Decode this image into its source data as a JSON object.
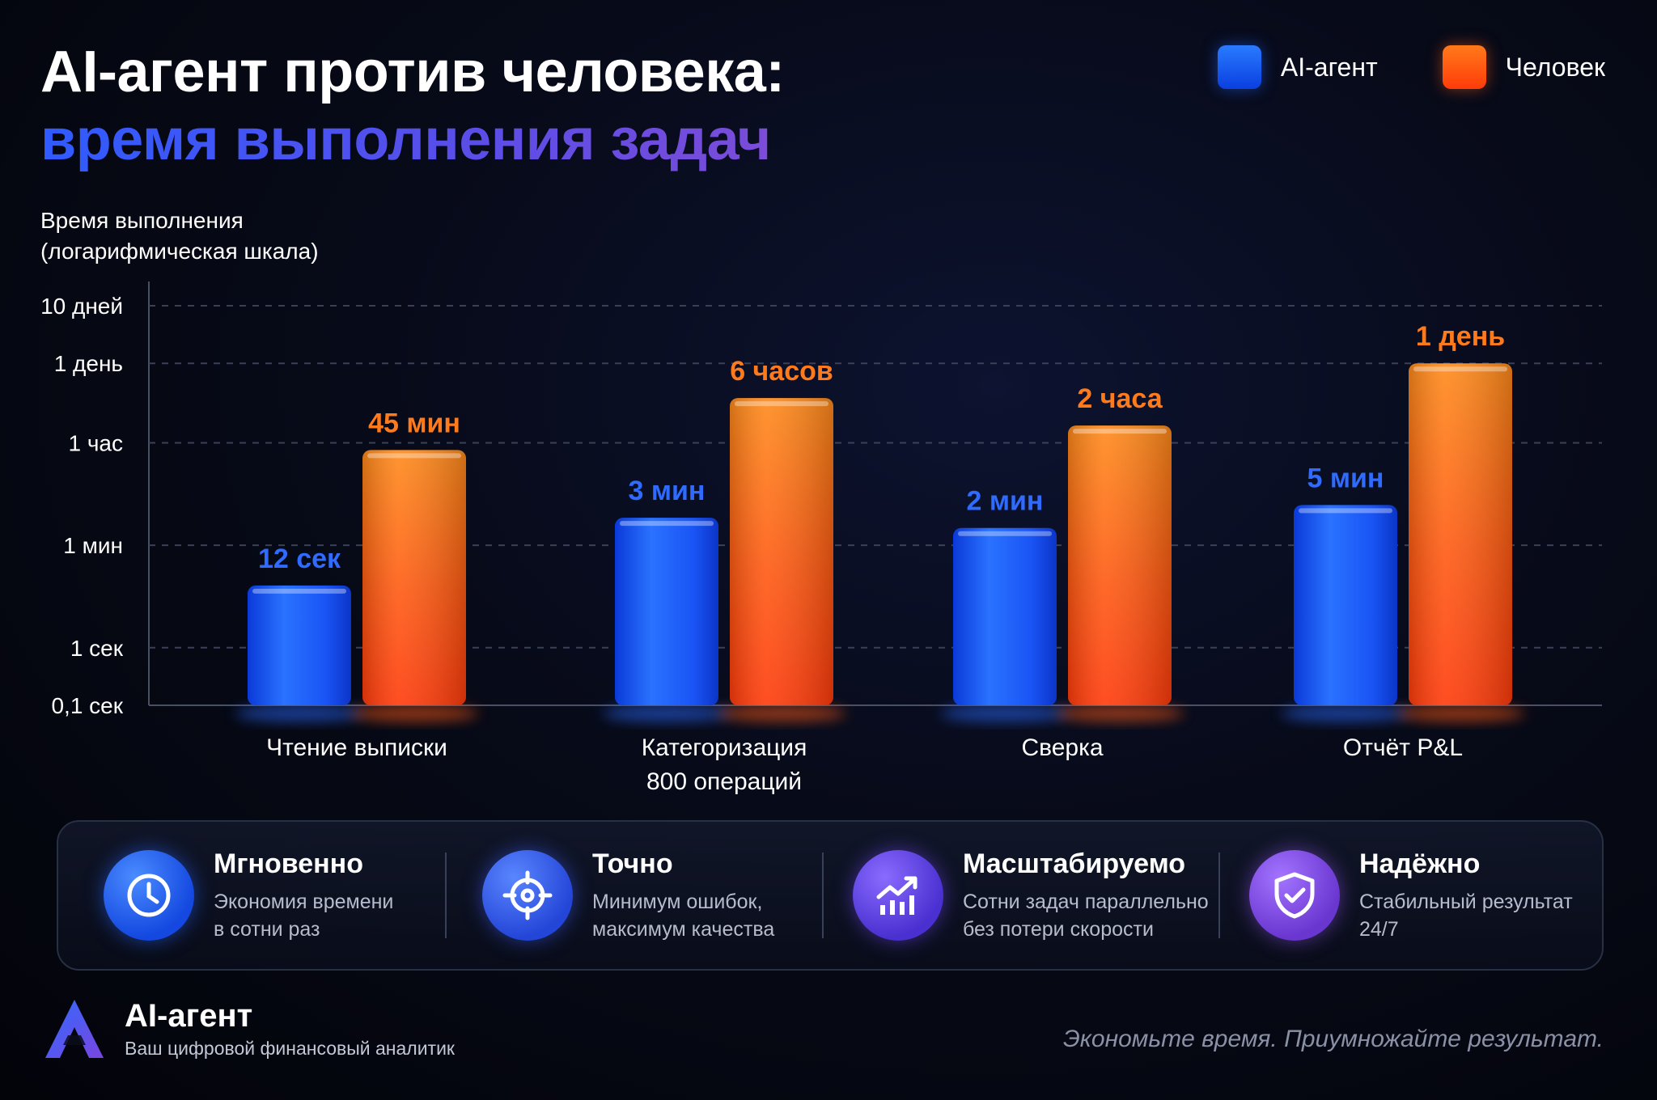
{
  "header": {
    "title_line1": "AI-агент против человека:",
    "title_line2": "время выполнения задач"
  },
  "legend": [
    {
      "label": "AI-агент",
      "color": "#1a5cff"
    },
    {
      "label": "Человек",
      "color": "#ff4a0f"
    }
  ],
  "chart_data": {
    "type": "bar",
    "y_scale": "log",
    "ylabel_lines": [
      "Время выполнения",
      "(логарифмическая шкала)"
    ],
    "y_ticks": [
      {
        "label": "10 дней",
        "seconds": 864000
      },
      {
        "label": "1 день",
        "seconds": 86400
      },
      {
        "label": "1 час",
        "seconds": 3600
      },
      {
        "label": "1 мин",
        "seconds": 60
      },
      {
        "label": "1 сек",
        "seconds": 1
      },
      {
        "label": "0,1 сек",
        "seconds": 0.1
      }
    ],
    "ylim_seconds": [
      0.1,
      864000
    ],
    "grid": "horizontal dashed",
    "legend_position": "top-right",
    "categories": [
      {
        "lines": [
          "Чтение выписки"
        ]
      },
      {
        "lines": [
          "Категоризация",
          "800 операций"
        ]
      },
      {
        "lines": [
          "Сверка"
        ]
      },
      {
        "lines": [
          "Отчёт P&L"
        ]
      }
    ],
    "series": [
      {
        "name": "AI-агент",
        "color": "#1a5cff",
        "labels": [
          "12 сек",
          "3 мин",
          "2 мин",
          "5 мин"
        ],
        "values_seconds": [
          12,
          180,
          120,
          300
        ]
      },
      {
        "name": "Человек",
        "color": "#ff4a0f",
        "labels": [
          "45 мин",
          "6 часов",
          "2 часа",
          "1 день"
        ],
        "values_seconds": [
          2700,
          21600,
          7200,
          86400
        ]
      }
    ]
  },
  "features": [
    {
      "icon": "clock-icon",
      "title": "Мгновенно",
      "desc_line1": "Экономия времени",
      "desc_line2": "в сотни раз",
      "color": "#1f62f5"
    },
    {
      "icon": "target-icon",
      "title": "Точно",
      "desc_line1": "Минимум ошибок,",
      "desc_line2": "максимум качества",
      "color": "#2a5cf0"
    },
    {
      "icon": "growth-chart-icon",
      "title": "Масштабируемо",
      "desc_line1": "Сотни задач параллельно",
      "desc_line2": "без потери скорости",
      "color": "#5a3fe0"
    },
    {
      "icon": "shield-check-icon",
      "title": "Надёжно",
      "desc_line1": "Стабильный результат",
      "desc_line2": "24/7",
      "color": "#7a3ed8"
    }
  ],
  "brand": {
    "name": "AI-агент",
    "tagline": "Ваш цифровой финансовый аналитик"
  },
  "slogan": "Экономьте время. Приумножайте результат."
}
